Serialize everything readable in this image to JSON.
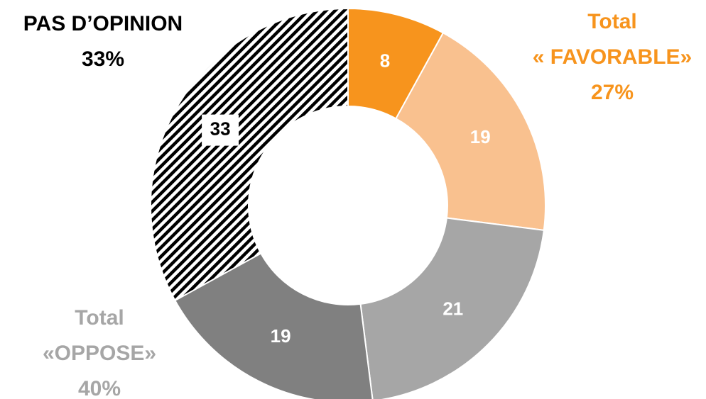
{
  "chart_data": {
    "type": "donut",
    "categories": [
      null,
      null,
      null,
      null,
      null
    ],
    "values": [
      8,
      19,
      21,
      19,
      33
    ],
    "colors": [
      "#f7941d",
      "#f9c18f",
      "#a6a6a6",
      "#808080",
      "#000000"
    ],
    "hatch": [
      false,
      false,
      false,
      false,
      true
    ],
    "annotations": [
      {
        "lines": [
          "PAS D’OPINION",
          "33%"
        ],
        "color": "#000000"
      },
      {
        "lines": [
          "Total",
          "« FAVORABLE»",
          "27%"
        ],
        "color": "#f7941d"
      },
      {
        "lines": [
          "Total",
          "«OPPOSE»",
          "40%"
        ],
        "color": "#a6a6a6"
      }
    ]
  }
}
